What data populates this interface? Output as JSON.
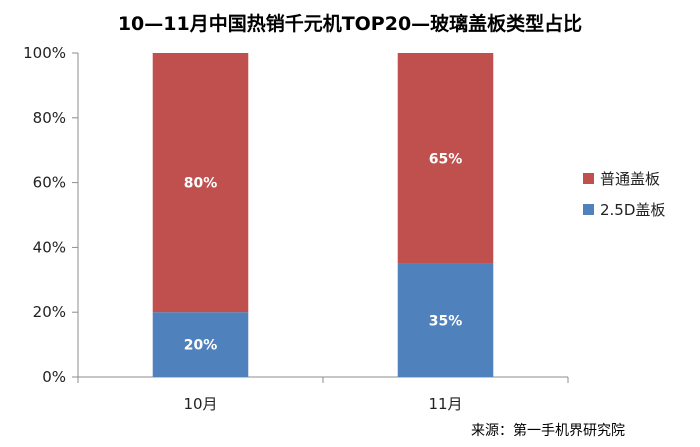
{
  "chart_data": {
    "type": "bar",
    "stacked": true,
    "title": "10—11月中国热销千元机TOP20—玻璃盖板类型占比",
    "categories": [
      "10月",
      "11月"
    ],
    "series": [
      {
        "name": "2.5D盖板",
        "values": [
          20,
          35
        ],
        "color": "#4f81bd",
        "labels": [
          "20%",
          "35%"
        ]
      },
      {
        "name": "普通盖板",
        "values": [
          80,
          65
        ],
        "color": "#c0504d",
        "labels": [
          "80%",
          "65%"
        ]
      }
    ],
    "legend_order": [
      "普通盖板",
      "2.5D盖板"
    ],
    "ylim": [
      0,
      100
    ],
    "yticks": [
      "0%",
      "20%",
      "40%",
      "60%",
      "80%",
      "100%"
    ],
    "grid": false,
    "legend_position": "right",
    "xlabel": "",
    "ylabel": ""
  },
  "source_note": "来源：第一手机界研究院"
}
